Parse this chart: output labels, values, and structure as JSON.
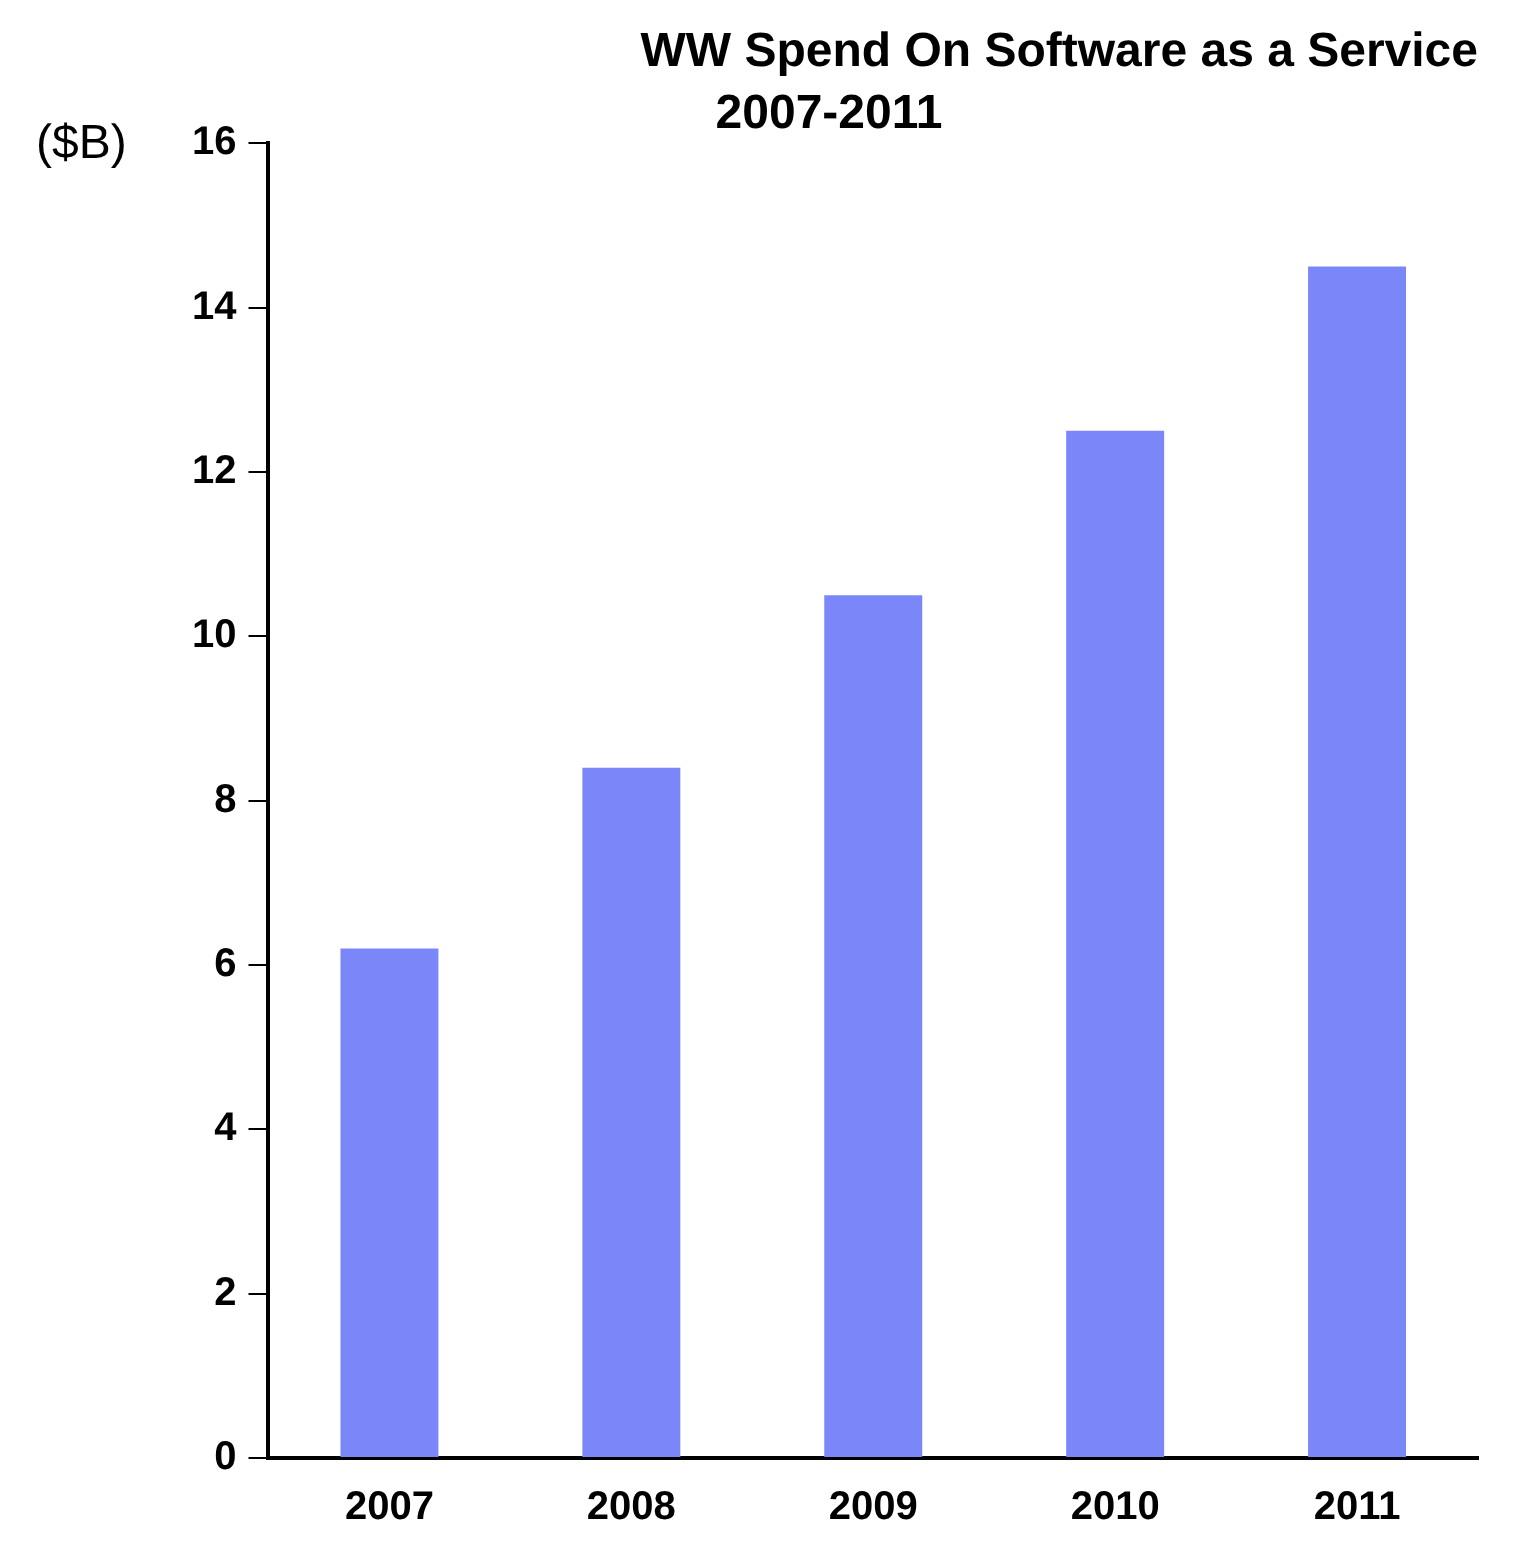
{
  "chart_data": {
    "type": "bar",
    "title": "WW Spend On Software as a Service",
    "subtitle": "2007-2011",
    "ylabel": "($B)",
    "categories": [
      "2007",
      "2008",
      "2009",
      "2010",
      "2011"
    ],
    "values": [
      6.2,
      8.4,
      10.5,
      12.5,
      14.5
    ],
    "color": "#7b87f8",
    "ylim": [
      0,
      16
    ],
    "yticks": [
      0,
      2,
      4,
      6,
      8,
      10,
      12,
      14,
      16
    ],
    "grid": false,
    "legend": false
  }
}
